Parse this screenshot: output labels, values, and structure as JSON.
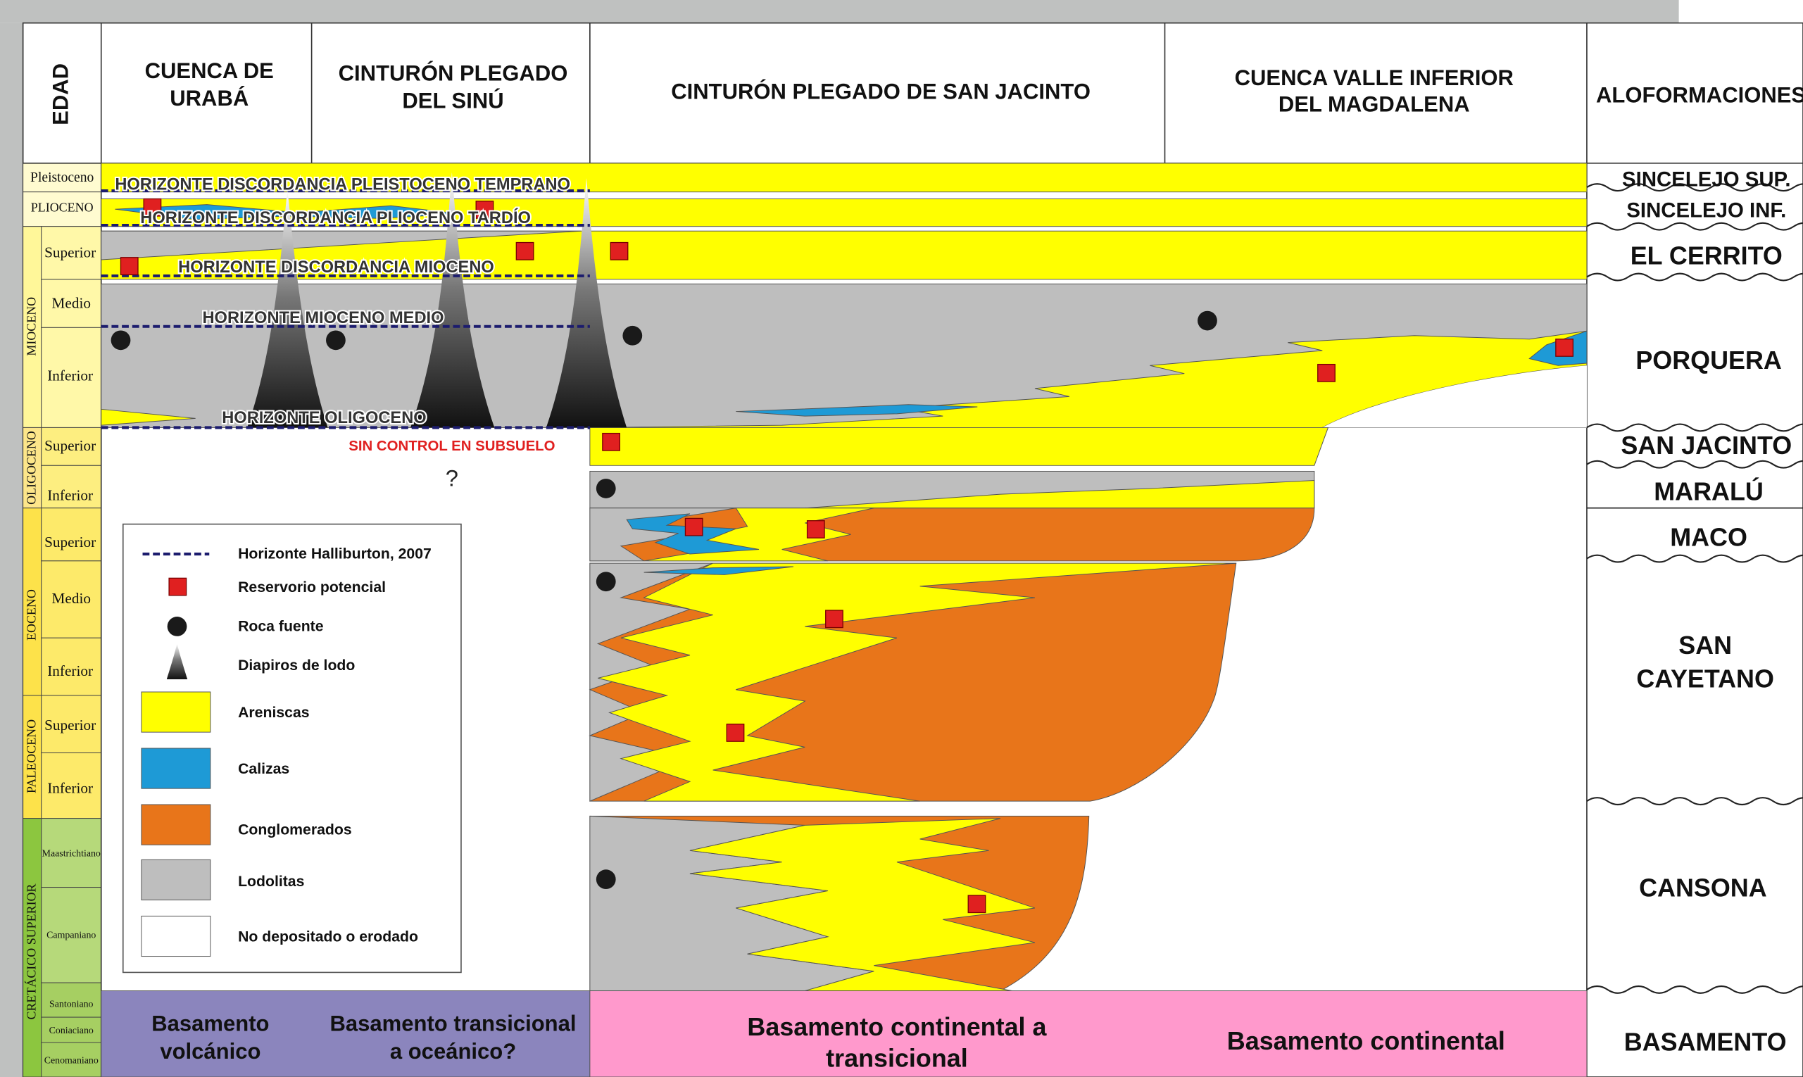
{
  "header": {
    "columns": [
      {
        "lines": [
          "EDAD"
        ]
      },
      {
        "lines": [
          "CUENCA DE",
          "URABÁ"
        ]
      },
      {
        "lines": [
          "CINTURÓN PLEGADO",
          "DEL SINÚ"
        ]
      },
      {
        "lines": [
          "CINTURÓN PLEGADO DE SAN JACINTO"
        ]
      },
      {
        "lines": [
          "CUENCA VALLE INFERIOR",
          "DEL MAGDALENA"
        ]
      },
      {
        "lines": [
          "ALOFORMACIONES"
        ]
      }
    ]
  },
  "ages": {
    "epochs": [
      "Pleistoceno",
      "PLIOCENO",
      "MIOCENO",
      "OLIGOCENO",
      "EOCENO",
      "PALEOCENO",
      "CRETÁCICO SUPERIOR"
    ],
    "subdivisions": [
      "Superior",
      "Medio",
      "Inferior",
      "Superior",
      "Inferior",
      "Superior",
      "Medio",
      "Inferior",
      "Superior",
      "Inferior",
      "Maastrichtiano",
      "Campaniano",
      "Santoniano",
      "Coniaciano",
      "Cenomaniano"
    ]
  },
  "horizons": [
    "HORIZONTE DISCORDANCIA PLEISTOCENO TEMPRANO",
    "HORIZONTE DISCORDANCIA PLIOCENO TARDÍO",
    "HORIZONTE DISCORDANCIA MIOCENO",
    "HORIZONTE MIOCENO MEDIO",
    "HORIZONTE OLIGOCENO"
  ],
  "annotations": {
    "no_control": "SIN CONTROL EN SUBSUELO",
    "question": "?"
  },
  "legend": [
    "Horizonte Halliburton, 2007",
    "Reservorio potencial",
    "Roca fuente",
    "Diapiros de lodo",
    "Areniscas",
    "Calizas",
    "Conglomerados",
    "Lodolitas",
    "No depositado o erodado"
  ],
  "aloformaciones": [
    {
      "lines": [
        "SINCELEJO SUP."
      ]
    },
    {
      "lines": [
        "SINCELEJO INF."
      ]
    },
    {
      "lines": [
        "EL CERRITO"
      ]
    },
    {
      "lines": [
        "PORQUERA"
      ]
    },
    {
      "lines": [
        "SAN JACINTO"
      ]
    },
    {
      "lines": [
        "MARALÚ"
      ]
    },
    {
      "lines": [
        "MACO"
      ]
    },
    {
      "lines": [
        "SAN",
        "CAYETANO"
      ]
    },
    {
      "lines": [
        "CANSONA"
      ]
    },
    {
      "lines": [
        "BASAMENTO"
      ]
    }
  ],
  "basement": [
    {
      "lines": [
        "Basamento",
        "volcánico"
      ]
    },
    {
      "lines": [
        "Basamento transicional",
        "a oceánico?"
      ]
    },
    {
      "lines": [
        "Basamento continental a",
        "transicional"
      ]
    },
    {
      "lines": [
        "Basamento continental"
      ]
    }
  ]
}
